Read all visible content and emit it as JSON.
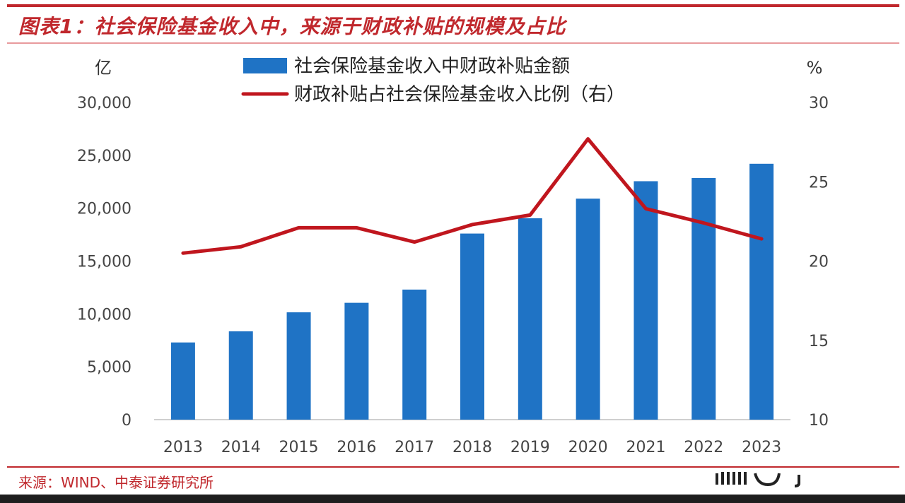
{
  "header": {
    "title": "图表1：社会保险基金收入中，来源于财政补贴的规模及占比"
  },
  "footer": {
    "source": "来源：WIND、中泰证券研究所"
  },
  "chart_data": {
    "type": "bar",
    "title": "图表1：社会保险基金收入中，来源于财政补贴的规模及占比",
    "categories": [
      "2013",
      "2014",
      "2015",
      "2016",
      "2017",
      "2018",
      "2019",
      "2020",
      "2021",
      "2022",
      "2023"
    ],
    "series": [
      {
        "name": "社会保险基金收入中财政补贴金额",
        "type": "bar",
        "axis": "left",
        "color": "#1f73c5",
        "values": [
          7300,
          8350,
          10150,
          11050,
          12300,
          17600,
          19050,
          20900,
          22550,
          22850,
          24200
        ]
      },
      {
        "name": "财政补贴占社会保险基金收入比例（右）",
        "type": "line",
        "axis": "right",
        "color": "#c0161e",
        "values": [
          20.5,
          20.9,
          22.1,
          22.1,
          21.2,
          22.3,
          22.9,
          27.7,
          23.3,
          22.4,
          21.4
        ]
      }
    ],
    "ylabel": "亿",
    "ylabel_right": "%",
    "ylim": [
      0,
      30000
    ],
    "ylim_right": [
      10,
      30
    ],
    "yticks": [
      0,
      5000,
      10000,
      15000,
      20000,
      25000,
      30000
    ],
    "yticks_labels": [
      "0",
      "5,000",
      "10,000",
      "15,000",
      "20,000",
      "25,000",
      "30,000"
    ],
    "yticks_right": [
      10,
      15,
      20,
      25,
      30
    ],
    "yticks_right_labels": [
      "10",
      "15",
      "20",
      "25",
      "30"
    ],
    "grid": false,
    "legend_position": "top-center"
  }
}
